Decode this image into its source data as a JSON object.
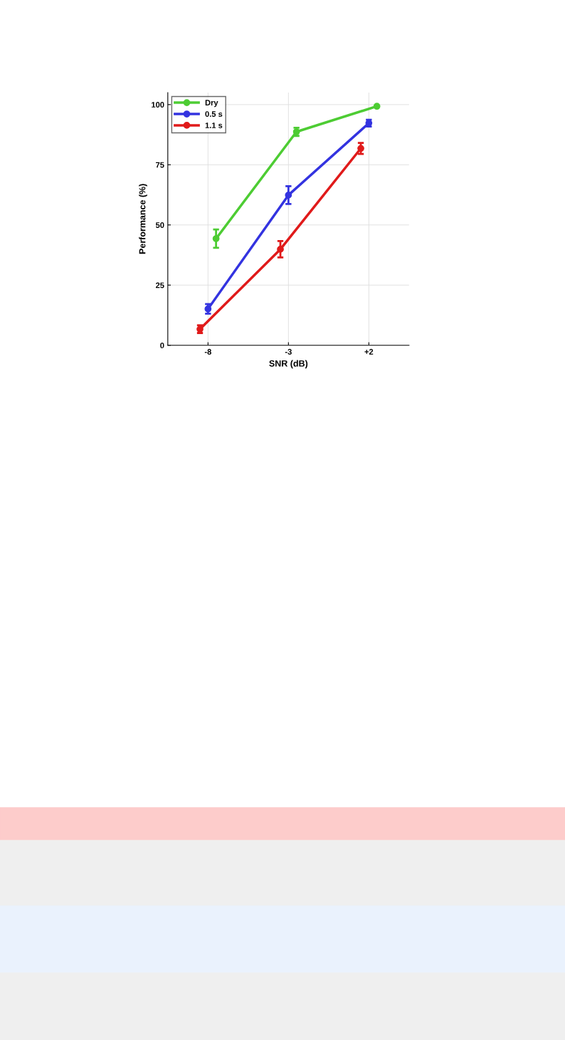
{
  "chart_data": {
    "type": "line",
    "xlabel": "SNR (dB)",
    "ylabel": "Performance (%)",
    "xlim": [
      -10.5,
      4.5
    ],
    "xticks": [
      -8,
      -3,
      {
        "value": 2,
        "label": "+2"
      }
    ],
    "ylim": [
      0,
      105
    ],
    "yticks": [
      0,
      25,
      50,
      75,
      100
    ],
    "grid": true,
    "legend": "top left",
    "marker": "circle",
    "line_style": "solid",
    "series": [
      {
        "name": "Dry",
        "color": "#4dcc33",
        "x": [
          -7.5,
          -2.5,
          2.5
        ],
        "values": [
          44.3,
          88.7,
          99.3
        ],
        "errors": [
          3.8,
          1.7,
          null
        ]
      },
      {
        "name": "0.5 s",
        "color": "#3333e0",
        "x": [
          -8,
          -3,
          2
        ],
        "values": [
          15.1,
          62.4,
          92.3
        ],
        "errors": [
          2.0,
          3.7,
          1.4
        ]
      },
      {
        "name": "1.1 s",
        "color": "#e01a1a",
        "x": [
          -8.5,
          -3.5,
          1.5
        ],
        "values": [
          6.7,
          39.9,
          81.8
        ],
        "errors": [
          1.6,
          3.4,
          2.3
        ]
      }
    ]
  }
}
